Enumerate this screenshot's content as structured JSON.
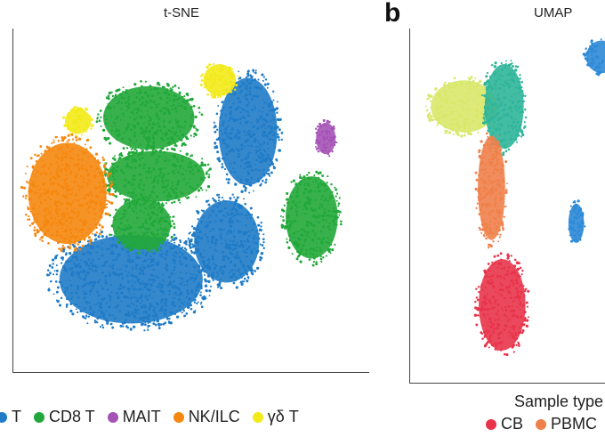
{
  "chart_data": [
    {
      "type": "scatter",
      "title": "t-SNE",
      "legend": {
        "position": "bottom",
        "items": [
          {
            "label": "T",
            "color": "#1f7bc7"
          },
          {
            "label": "CD8 T",
            "color": "#22a83a"
          },
          {
            "label": "MAIT",
            "color": "#a552b5"
          },
          {
            "label": "NK/ILC",
            "color": "#f5870e"
          },
          {
            "label": "γδ T",
            "color": "#f3ea1b"
          }
        ]
      },
      "clusters": [
        {
          "label": "T",
          "color": "#1f7bc7",
          "x": 0.66,
          "y": 0.7,
          "rx": 0.09,
          "ry": 0.17
        },
        {
          "label": "T",
          "color": "#1f7bc7",
          "x": 0.6,
          "y": 0.38,
          "rx": 0.1,
          "ry": 0.13
        },
        {
          "label": "T",
          "color": "#1f7bc7",
          "x": 0.33,
          "y": 0.27,
          "rx": 0.22,
          "ry": 0.14
        },
        {
          "label": "CD8 T",
          "color": "#22a83a",
          "x": 0.38,
          "y": 0.74,
          "rx": 0.14,
          "ry": 0.1
        },
        {
          "label": "CD8 T",
          "color": "#22a83a",
          "x": 0.4,
          "y": 0.57,
          "rx": 0.15,
          "ry": 0.08
        },
        {
          "label": "CD8 T",
          "color": "#22a83a",
          "x": 0.36,
          "y": 0.43,
          "rx": 0.09,
          "ry": 0.08
        },
        {
          "label": "CD8 T",
          "color": "#22a83a",
          "x": 0.84,
          "y": 0.45,
          "rx": 0.08,
          "ry": 0.13
        },
        {
          "label": "NK/ILC",
          "color": "#f5870e",
          "x": 0.15,
          "y": 0.52,
          "rx": 0.12,
          "ry": 0.16
        },
        {
          "label": "γδ T",
          "color": "#f3ea1b",
          "x": 0.58,
          "y": 0.85,
          "rx": 0.05,
          "ry": 0.05
        },
        {
          "label": "γδ T",
          "color": "#f3ea1b",
          "x": 0.18,
          "y": 0.73,
          "rx": 0.04,
          "ry": 0.04
        },
        {
          "label": "MAIT",
          "color": "#a552b5",
          "x": 0.88,
          "y": 0.68,
          "rx": 0.03,
          "ry": 0.05
        }
      ]
    },
    {
      "type": "scatter",
      "title": "UMAP",
      "legend": {
        "title": "Sample type",
        "position": "bottom",
        "items": [
          {
            "label": "CB",
            "color": "#e8344a"
          },
          {
            "label": "PBMC",
            "color": "#f0804a"
          }
        ]
      },
      "clusters": [
        {
          "color": "#d9e86a",
          "x": 0.25,
          "y": 0.78,
          "rx": 0.17,
          "ry": 0.08
        },
        {
          "color": "#2fb59a",
          "x": 0.44,
          "y": 0.78,
          "rx": 0.1,
          "ry": 0.13
        },
        {
          "color": "#f0804a",
          "x": 0.38,
          "y": 0.55,
          "rx": 0.07,
          "ry": 0.16
        },
        {
          "color": "#e8344a",
          "x": 0.43,
          "y": 0.22,
          "rx": 0.12,
          "ry": 0.14
        },
        {
          "color": "#2d8ad6",
          "x": 0.9,
          "y": 0.92,
          "rx": 0.08,
          "ry": 0.05
        },
        {
          "color": "#2d8ad6",
          "x": 0.78,
          "y": 0.45,
          "rx": 0.04,
          "ry": 0.06
        }
      ]
    }
  ],
  "panel_b": {
    "letter": "b"
  }
}
